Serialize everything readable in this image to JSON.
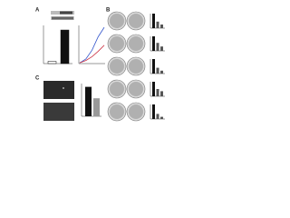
{
  "panels": {
    "a": {
      "label": "A",
      "ylim": [
        0,
        100
      ],
      "bar_values": [
        6,
        88
      ],
      "line_series": [
        {
          "color": "#3355cc",
          "values": [
            2,
            12,
            35,
            70,
            95
          ]
        },
        {
          "color": "#cc3344",
          "values": [
            2,
            8,
            18,
            32,
            48
          ]
        }
      ]
    },
    "b": {
      "label": "B",
      "ylim": [
        0,
        100
      ],
      "bar_groups": [
        [
          100,
          45,
          25
        ],
        [
          100,
          55,
          30
        ],
        [
          100,
          40,
          20
        ],
        [
          100,
          50,
          35
        ],
        [
          100,
          35,
          15
        ]
      ]
    },
    "c": {
      "label": "C",
      "ylim": [
        0,
        100
      ],
      "bar_values": [
        90,
        55
      ]
    }
  }
}
